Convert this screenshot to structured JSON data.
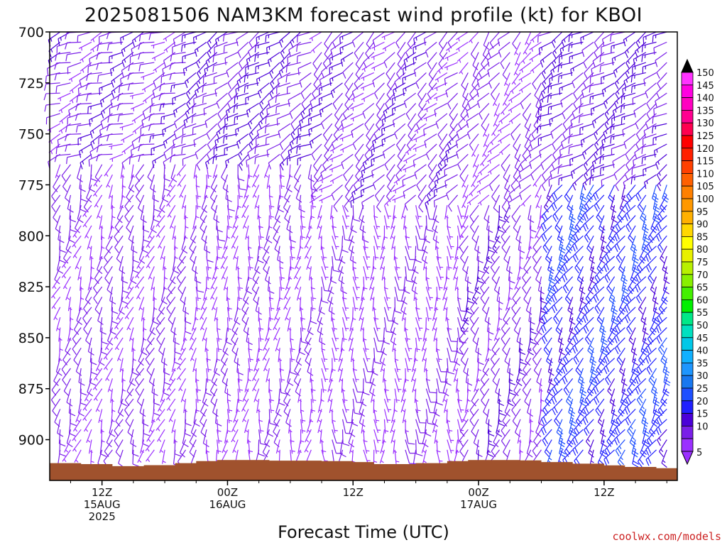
{
  "chart_data": {
    "type": "wind_barb_time_height",
    "title": "2025081506 NAM3KM forecast wind profile (kt) for KBOI",
    "xlabel": "Forecast Time (UTC)",
    "ylabel": "",
    "credit": "coolwx.com/models",
    "x_range_hours_utc_from_15AUG00Z": [
      7,
      67
    ],
    "y_range_hPa": [
      700,
      920
    ],
    "y_ticks": [
      "700",
      "725",
      "750",
      "775",
      "800",
      "825",
      "850",
      "875",
      "900"
    ],
    "x_ticks": [
      {
        "hour": 12,
        "lines": [
          "12Z",
          "15AUG",
          "2025"
        ]
      },
      {
        "hour": 24,
        "lines": [
          "00Z",
          "16AUG"
        ]
      },
      {
        "hour": 36,
        "lines": [
          "12Z"
        ]
      },
      {
        "hour": 48,
        "lines": [
          "00Z",
          "17AUG"
        ]
      },
      {
        "hour": 60,
        "lines": [
          "12Z"
        ]
      }
    ],
    "barb_times_hours": [
      8,
      9,
      10,
      11,
      12,
      13,
      14,
      15,
      16,
      17,
      18,
      19,
      20,
      21,
      22,
      23,
      24,
      25,
      26,
      27,
      28,
      29,
      30,
      31,
      32,
      33,
      34,
      35,
      36,
      37,
      38,
      39,
      40,
      41,
      42,
      43,
      44,
      45,
      46,
      47,
      48,
      49,
      50,
      51,
      52,
      53,
      54,
      55,
      56,
      57,
      58,
      59,
      60,
      61,
      62,
      63,
      64,
      65,
      66
    ],
    "barb_levels_hPa": [
      700,
      705,
      710,
      715,
      720,
      725,
      730,
      735,
      740,
      745,
      750,
      755,
      760,
      765,
      770,
      775,
      780,
      785,
      790,
      795,
      800,
      805,
      810,
      815,
      820,
      825,
      830,
      835,
      840,
      845,
      850,
      855,
      860,
      865,
      870,
      875,
      880,
      885,
      890,
      895,
      900,
      905
    ],
    "wind_field_segments": [
      {
        "hours": [
          8,
          20
        ],
        "levels": [
          700,
          760
        ],
        "direction_deg": 250,
        "speed_kt": 12
      },
      {
        "hours": [
          8,
          20
        ],
        "levels": [
          765,
          905
        ],
        "direction_deg": 200,
        "speed_kt": 10
      },
      {
        "hours": [
          20,
          32
        ],
        "levels": [
          700,
          760
        ],
        "direction_deg": 240,
        "speed_kt": 15
      },
      {
        "hours": [
          20,
          32
        ],
        "levels": [
          765,
          905
        ],
        "direction_deg": 190,
        "speed_kt": 8
      },
      {
        "hours": [
          32,
          46
        ],
        "levels": [
          700,
          780
        ],
        "direction_deg": 230,
        "speed_kt": 12
      },
      {
        "hours": [
          32,
          46
        ],
        "levels": [
          785,
          905
        ],
        "direction_deg": 180,
        "speed_kt": 8
      },
      {
        "hours": [
          46,
          54
        ],
        "levels": [
          700,
          780
        ],
        "direction_deg": 220,
        "speed_kt": 10
      },
      {
        "hours": [
          46,
          54
        ],
        "levels": [
          785,
          905
        ],
        "direction_deg": 200,
        "speed_kt": 12
      },
      {
        "hours": [
          54,
          66
        ],
        "levels": [
          700,
          770
        ],
        "direction_deg": 240,
        "speed_kt": 15
      },
      {
        "hours": [
          54,
          66
        ],
        "levels": [
          775,
          905
        ],
        "direction_deg": 210,
        "speed_kt": 22
      }
    ],
    "surface_pressure_hPa": [
      [
        7,
        911.5
      ],
      [
        10,
        912
      ],
      [
        13,
        913
      ],
      [
        16,
        912.5
      ],
      [
        19,
        911.5
      ],
      [
        21,
        910.5
      ],
      [
        23,
        910
      ],
      [
        28,
        910.3
      ],
      [
        33,
        910.5
      ],
      [
        36,
        911
      ],
      [
        38,
        912
      ],
      [
        42,
        911.5
      ],
      [
        45,
        910.5
      ],
      [
        47,
        910
      ],
      [
        52,
        910.2
      ],
      [
        54,
        911
      ],
      [
        57,
        911.8
      ],
      [
        60,
        912.6
      ],
      [
        62,
        913.4
      ],
      [
        65,
        914
      ],
      [
        67,
        914
      ]
    ],
    "colorbar": {
      "labels": [
        "5",
        "10",
        "15",
        "20",
        "25",
        "30",
        "35",
        "40",
        "45",
        "50",
        "55",
        "60",
        "65",
        "70",
        "75",
        "80",
        "85",
        "90",
        "95",
        "100",
        "105",
        "110",
        "115",
        "120",
        "125",
        "130",
        "135",
        "140",
        "145",
        "150"
      ],
      "colors": [
        "#9b30ff",
        "#7a1fe8",
        "#4b00d8",
        "#2020ff",
        "#1e50ff",
        "#1878f0",
        "#1e96ff",
        "#10b0ff",
        "#00c8e8",
        "#00e0c0",
        "#00e888",
        "#00f000",
        "#44f000",
        "#88f000",
        "#b8f000",
        "#e8f000",
        "#ffff00",
        "#ffd700",
        "#ffb000",
        "#ff9800",
        "#ff8000",
        "#ff6000",
        "#ff4000",
        "#ff2000",
        "#ff0000",
        "#ff0050",
        "#ff0090",
        "#ff00c0",
        "#ff00e0",
        "#ff33ff"
      ]
    }
  },
  "colors": {
    "terrain": "#a0522d",
    "barb": "#7a1fe8",
    "credit": "#cc2222",
    "frame": "#000000"
  }
}
